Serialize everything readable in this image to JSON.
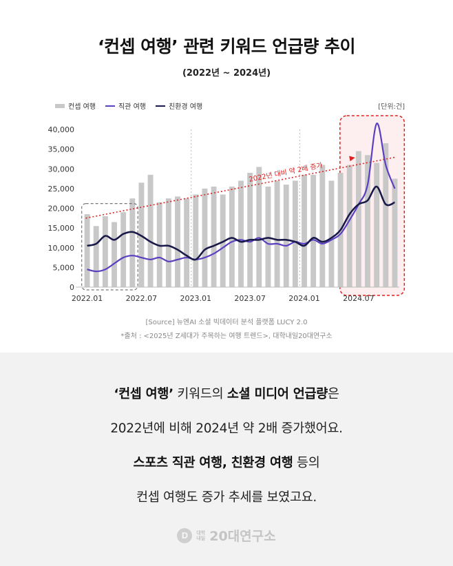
{
  "header": {
    "title": "‘컨셉 여행’ 관련 키워드 언급량 추이",
    "subtitle": "(2022년 ~ 2024년)"
  },
  "legend": {
    "bar_label": "컨셉 여행",
    "line1_label": "직관 여행",
    "line2_label": "친환경 여행",
    "unit": "[단위:건]"
  },
  "colors": {
    "bar": "#c8c8c8",
    "line_sports": "#5b3fc0",
    "line_eco": "#1a1a4a",
    "trend": "#e01f1f",
    "highlight": "#fdeff0"
  },
  "chart_data": {
    "type": "bar",
    "title": "‘컨셉 여행’ 관련 키워드 언급량 추이",
    "xlabel": "",
    "ylabel": "",
    "ylim": [
      0,
      40000
    ],
    "yticks": [
      0,
      5000,
      10000,
      15000,
      20000,
      25000,
      30000,
      35000,
      40000
    ],
    "ytick_labels": [
      "0",
      "5,000",
      "10,000",
      "15,000",
      "20,000",
      "25,000",
      "30,000",
      "35,000",
      "40,000"
    ],
    "xtick_labels": [
      "2022.01",
      "2022.07",
      "2023.01",
      "2023.07",
      "2024.01",
      "2024.07"
    ],
    "xtick_positions": [
      0,
      6,
      12,
      18,
      24,
      30
    ],
    "series": [
      {
        "name": "컨셉 여행",
        "kind": "bar",
        "values": [
          18500,
          15500,
          18000,
          16500,
          19000,
          22500,
          26500,
          28500,
          21500,
          22500,
          23000,
          22500,
          23500,
          25000,
          25500,
          23500,
          25500,
          27000,
          29000,
          30500,
          25500,
          27000,
          26000,
          27000,
          28500,
          28500,
          31000,
          27000,
          29000,
          31000,
          34500,
          33500,
          31500,
          36500,
          27500
        ]
      },
      {
        "name": "직관 여행",
        "kind": "line",
        "values": [
          4500,
          4000,
          4500,
          6000,
          7500,
          8000,
          7500,
          7000,
          7500,
          6500,
          7000,
          7500,
          7000,
          7500,
          8500,
          10000,
          11500,
          12000,
          11500,
          12500,
          11000,
          11000,
          10500,
          11500,
          11000,
          12000,
          11000,
          12000,
          13500,
          17000,
          21000,
          26000,
          41500,
          31000,
          25000
        ]
      },
      {
        "name": "친환경 여행",
        "kind": "line",
        "values": [
          10500,
          11000,
          13000,
          12000,
          13500,
          14000,
          13000,
          11500,
          10500,
          10500,
          9500,
          8000,
          7000,
          9500,
          10500,
          11500,
          12500,
          11500,
          12000,
          12000,
          12500,
          12000,
          12000,
          11500,
          10500,
          12500,
          11500,
          12500,
          14500,
          18500,
          21000,
          22000,
          25500,
          21000,
          21500
        ]
      }
    ],
    "annotations": {
      "trend_label": "2022년 대비 약 2배 증가",
      "trend_from": 17500,
      "trend_to": 33000,
      "highlight_2022_start": 0,
      "highlight_2022_end": 5,
      "highlight_2024_start": 29,
      "highlight_2024_end": 34
    }
  },
  "footer": {
    "source": "[Source] 뉴엔AI 소셜 빅데이터 분석 플랫폼 LUCY 2.0",
    "note": "*출처 : <2025년 Z세대가 주목하는 여행 트렌드>, 대학내일20대연구소"
  },
  "summary": {
    "l1a": "‘컨셉 여행’",
    "l1b": " 키워드의 ",
    "l1c": "소셜 미디어 언급량",
    "l1d": "은",
    "l2": "2022년에 비해 2024년 약 2배 증가했어요.",
    "l3a": "스포츠 직관 여행, 친환경 여행",
    "l3b": " 등의",
    "l4": "컨셉 여행도 증가 추세를 보였고요."
  },
  "brand": {
    "mark": "D",
    "small1": "대학",
    "small2": "내일",
    "name": "20대연구소"
  }
}
